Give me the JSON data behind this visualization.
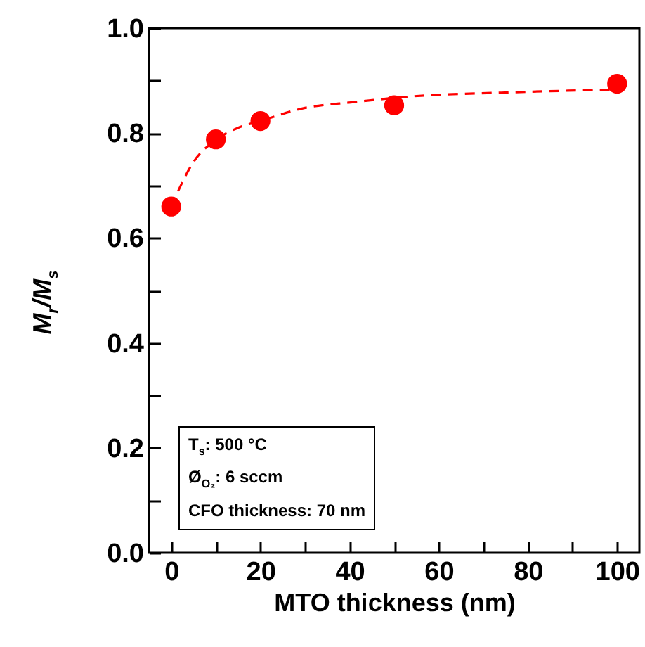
{
  "chart_data": {
    "type": "scatter",
    "xlabel": "MTO thickness (nm)",
    "ylabel": "M$_{r}$/M$_{s}$",
    "xlim": [
      -5,
      105
    ],
    "ylim": [
      0,
      1
    ],
    "xticks": [
      0,
      {
        "value": 10,
        "label": null
      },
      20,
      {
        "value": 30,
        "label": null
      },
      40,
      {
        "value": 50,
        "label": null
      },
      60,
      {
        "value": 70,
        "label": null
      },
      80,
      {
        "value": 90,
        "label": null
      },
      100
    ],
    "yticks": [
      "0.0",
      {
        "value": 0.1,
        "label": null
      },
      {
        "value": 0.2,
        "label": "0.2"
      },
      {
        "value": 0.3,
        "label": null
      },
      {
        "value": 0.4,
        "label": "0.4"
      },
      {
        "value": 0.5,
        "label": null
      },
      {
        "value": 0.6,
        "label": "0.6"
      },
      {
        "value": 0.7,
        "label": null
      },
      {
        "value": 0.8,
        "label": "0.8"
      },
      {
        "value": 0.9,
        "label": null
      },
      {
        "value": 1,
        "label": "1.0"
      }
    ],
    "grid": false,
    "marker": "circle",
    "series": [
      {
        "type": "line",
        "color": "#ff0000",
        "line_style": "dashed",
        "marker": "none",
        "x": [
          0,
          5,
          10,
          15,
          20,
          30,
          41,
          54,
          74,
          100
        ],
        "values": [
          0.66,
          0.745,
          0.787,
          0.81,
          0.823,
          0.848,
          0.859,
          0.87,
          0.877,
          0.883
        ]
      },
      {
        "color": "#ff0000",
        "x": [
          0,
          10,
          20,
          50,
          100
        ],
        "values": [
          0.66,
          0.788,
          0.823,
          0.853,
          0.894
        ]
      }
    ],
    "annotations": [
      "T$_{s}$: 500 °C",
      "Ø$_{O₂}$: 6 sccm",
      "CFO thickness: 70 nm"
    ]
  }
}
